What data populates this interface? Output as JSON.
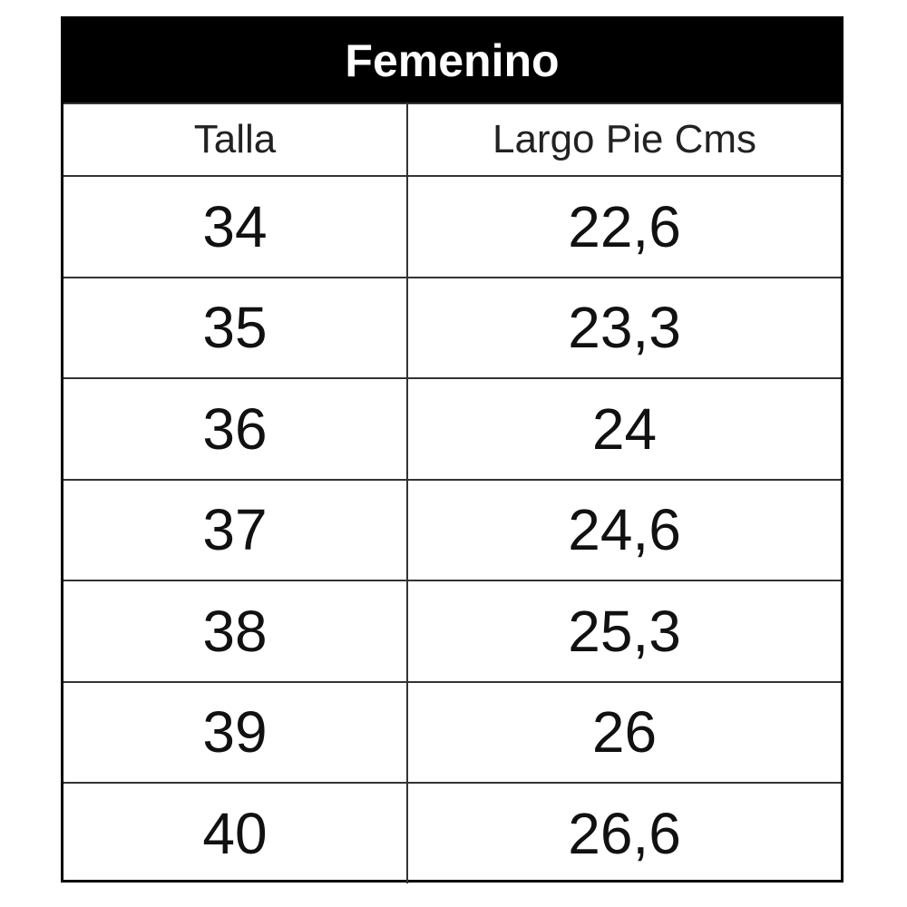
{
  "table": {
    "title": "Femenino",
    "columns": [
      "Talla",
      "Largo Pie Cms"
    ],
    "rows": [
      [
        "34",
        "22,6"
      ],
      [
        "35",
        "23,3"
      ],
      [
        "36",
        "24"
      ],
      [
        "37",
        "24,6"
      ],
      [
        "38",
        "25,3"
      ],
      [
        "39",
        "26"
      ],
      [
        "40",
        "26,6"
      ]
    ]
  },
  "colors": {
    "header_bg": "#000000",
    "header_text": "#ffffff",
    "border": "#000000"
  }
}
